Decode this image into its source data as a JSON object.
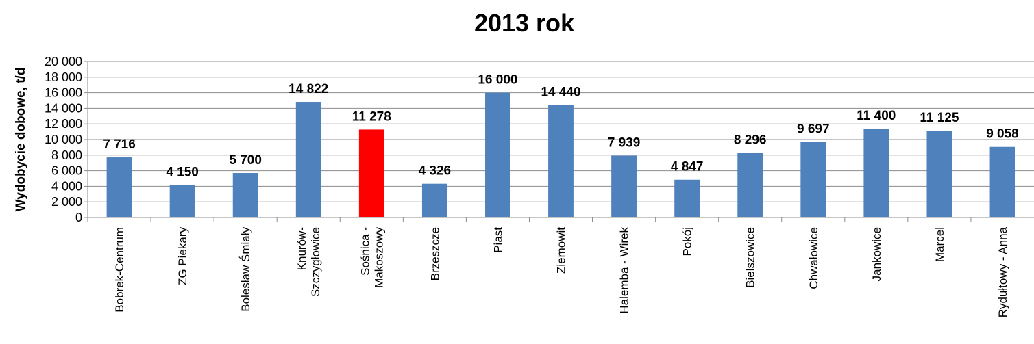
{
  "chart_data": {
    "type": "bar",
    "title": "2013 rok",
    "ylabel": "Wydobycie dobowe, t/d",
    "xlabel": "",
    "ylim": [
      0,
      20000
    ],
    "ytick_values": [
      0,
      2000,
      4000,
      6000,
      8000,
      10000,
      12000,
      14000,
      16000,
      18000,
      20000
    ],
    "ytick_labels": [
      "0",
      "2 000",
      "4 000",
      "6 000",
      "8 000",
      "10 000",
      "12 000",
      "14 000",
      "16 000",
      "18 000",
      "20 000"
    ],
    "grid": true,
    "legend": "none",
    "colors": {
      "default": "#4f81bd",
      "highlight": "#ff0000"
    },
    "categories": [
      [
        "Bobrek-Centrum"
      ],
      [
        "ZG Piekary"
      ],
      [
        "Bolesław Śmiały"
      ],
      [
        "Knurów-",
        "Szczygłowice"
      ],
      [
        "Sośnica -",
        "Makoszowy"
      ],
      [
        "Brzeszcze"
      ],
      [
        "Piast"
      ],
      [
        "Ziemowit"
      ],
      [
        "Halemba - Wirek"
      ],
      [
        "Pokój"
      ],
      [
        "Bielszowice"
      ],
      [
        "Chwałowice"
      ],
      [
        "Jankowice"
      ],
      [
        "Marcel"
      ],
      [
        "Rydułtowy - Anna"
      ]
    ],
    "values": [
      7716,
      4150,
      5700,
      14822,
      11278,
      4326,
      16000,
      14440,
      7939,
      4847,
      8296,
      9697,
      11400,
      11125,
      9058
    ],
    "value_labels": [
      "7 716",
      "4 150",
      "5 700",
      "14 822",
      "11 278",
      "4 326",
      "16 000",
      "14 440",
      "7 939",
      "4 847",
      "8 296",
      "9 697",
      "11 400",
      "11 125",
      "9 058"
    ],
    "highlight_index": 4
  }
}
